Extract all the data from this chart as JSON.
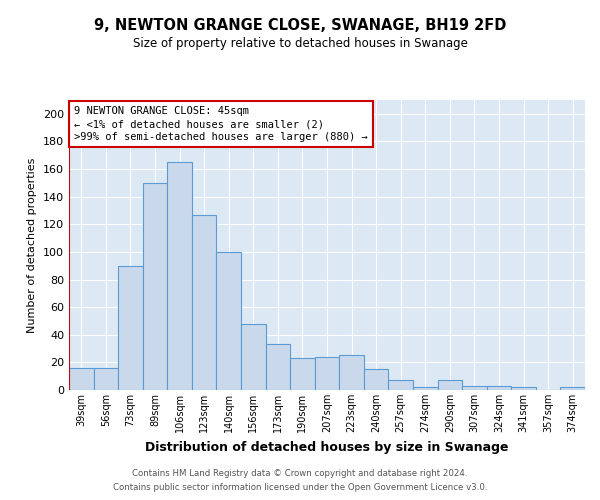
{
  "title1": "9, NEWTON GRANGE CLOSE, SWANAGE, BH19 2FD",
  "title2": "Size of property relative to detached houses in Swanage",
  "xlabel": "Distribution of detached houses by size in Swanage",
  "ylabel": "Number of detached properties",
  "categories": [
    "39sqm",
    "56sqm",
    "73sqm",
    "89sqm",
    "106sqm",
    "123sqm",
    "140sqm",
    "156sqm",
    "173sqm",
    "190sqm",
    "207sqm",
    "223sqm",
    "240sqm",
    "257sqm",
    "274sqm",
    "290sqm",
    "307sqm",
    "324sqm",
    "341sqm",
    "357sqm",
    "374sqm"
  ],
  "values": [
    16,
    16,
    90,
    150,
    165,
    127,
    100,
    48,
    33,
    23,
    24,
    25,
    15,
    7,
    2,
    7,
    3,
    3,
    2,
    0,
    2
  ],
  "bar_color": "#c9d9eb",
  "bar_edge_color": "#5b9bd5",
  "red_line_index": 0,
  "annotation_text": "9 NEWTON GRANGE CLOSE: 45sqm\n← <1% of detached houses are smaller (2)\n>99% of semi-detached houses are larger (880) →",
  "footer1": "Contains HM Land Registry data © Crown copyright and database right 2024.",
  "footer2": "Contains public sector information licensed under the Open Government Licence v3.0.",
  "ylim": [
    0,
    210
  ],
  "yticks": [
    0,
    20,
    40,
    60,
    80,
    100,
    120,
    140,
    160,
    180,
    200
  ],
  "plot_bg_color": "#dce9f5"
}
